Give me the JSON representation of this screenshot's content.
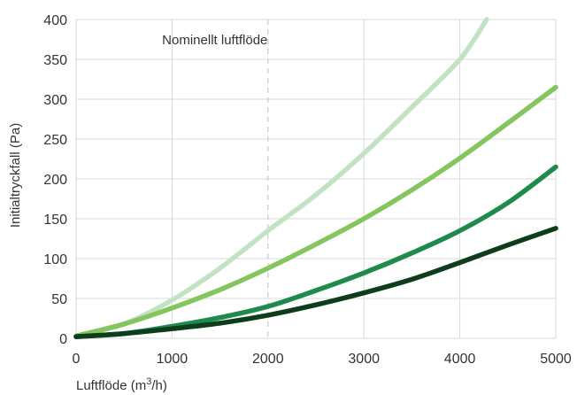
{
  "chart_data": {
    "type": "line",
    "xlabel": "Luftflöde (m",
    "xlabel_sup": "3",
    "xlabel_suffix": "/h)",
    "ylabel": "Initialtryckfall (Pa)",
    "xlim": [
      0,
      5000
    ],
    "ylim": [
      0,
      400
    ],
    "xticks": [
      "0",
      "1000",
      "2000",
      "3000",
      "4000",
      "5000"
    ],
    "yticks": [
      "0",
      "50",
      "100",
      "150",
      "200",
      "250",
      "300",
      "350",
      "400"
    ],
    "grid": true,
    "annotation": {
      "text": "Nominellt luftflöde",
      "x": 2000
    },
    "series": [
      {
        "color": "#c2e3c3",
        "x": [
          0,
          500,
          1000,
          1500,
          2000,
          2500,
          3000,
          3500,
          4000,
          4280
        ],
        "y": [
          3,
          18,
          48,
          88,
          135,
          180,
          232,
          290,
          350,
          400
        ]
      },
      {
        "color": "#84c65d",
        "x": [
          0,
          500,
          1000,
          1500,
          2000,
          2500,
          3000,
          3500,
          4000,
          4500,
          5000
        ],
        "y": [
          3,
          18,
          38,
          61,
          88,
          118,
          150,
          186,
          226,
          270,
          315
        ]
      },
      {
        "color": "#1e8a4c",
        "x": [
          0,
          500,
          1000,
          1500,
          2000,
          2500,
          3000,
          3500,
          4000,
          4500,
          5000
        ],
        "y": [
          2,
          6,
          15,
          26,
          40,
          60,
          82,
          107,
          135,
          170,
          215
        ]
      },
      {
        "color": "#0e3d1b",
        "x": [
          0,
          500,
          1000,
          1500,
          2000,
          2500,
          3000,
          3500,
          4000,
          4500,
          5000
        ],
        "y": [
          2,
          6,
          12,
          19,
          29,
          42,
          57,
          74,
          95,
          117,
          138
        ]
      }
    ]
  }
}
